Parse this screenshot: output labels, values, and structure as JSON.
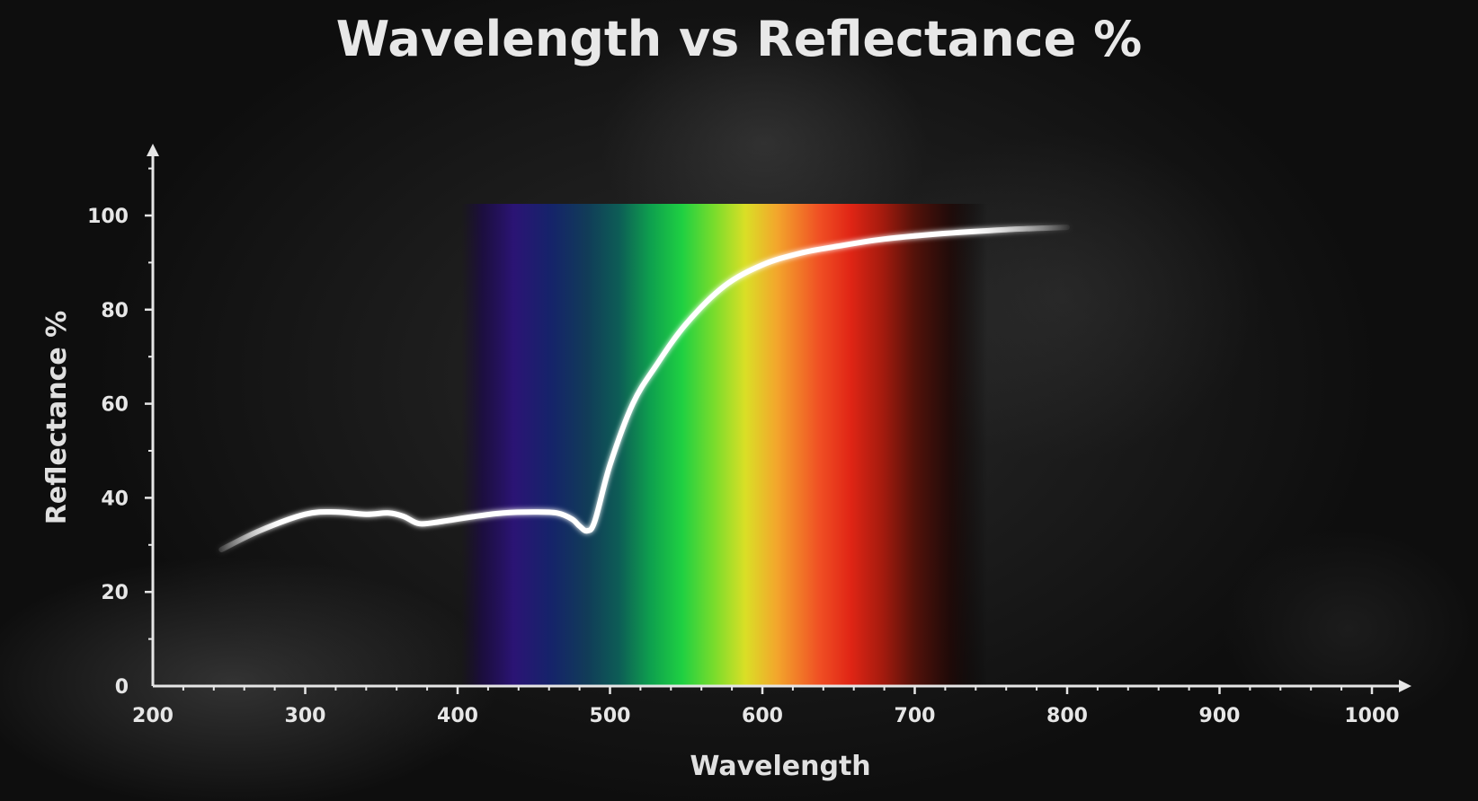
{
  "colors": {
    "curve": "#ffffff",
    "axis": "#e6e6e6",
    "text": "#e6e6e6",
    "background": "#121212"
  },
  "chart_data": {
    "type": "line",
    "title": "Wavelength vs Reflectance %",
    "xlabel": "Wavelength",
    "ylabel": "Reflectance %",
    "xlim": [
      200,
      1000
    ],
    "ylim": [
      0,
      100
    ],
    "x_ticks": [
      200,
      300,
      400,
      500,
      600,
      700,
      800,
      900,
      1000
    ],
    "y_ticks": [
      0,
      20,
      40,
      60,
      80,
      100
    ],
    "grid": false,
    "legend": "none",
    "visible_spectrum_band": [
      420,
      730
    ],
    "series": [
      {
        "x": [
          245,
          270,
          300,
          320,
          340,
          355,
          365,
          375,
          390,
          410,
          430,
          450,
          465,
          475,
          480,
          485,
          490,
          500,
          515,
          530,
          550,
          575,
          600,
          625,
          650,
          680,
          720,
          760,
          800
        ],
        "y": [
          29,
          33,
          36.5,
          37,
          36.5,
          36.8,
          36,
          34.5,
          35,
          36,
          36.8,
          37,
          36.8,
          35.5,
          34,
          33,
          35,
          47,
          60,
          68,
          77,
          85,
          89.5,
          92,
          93.5,
          95,
          96.2,
          97,
          97.5
        ]
      }
    ]
  }
}
